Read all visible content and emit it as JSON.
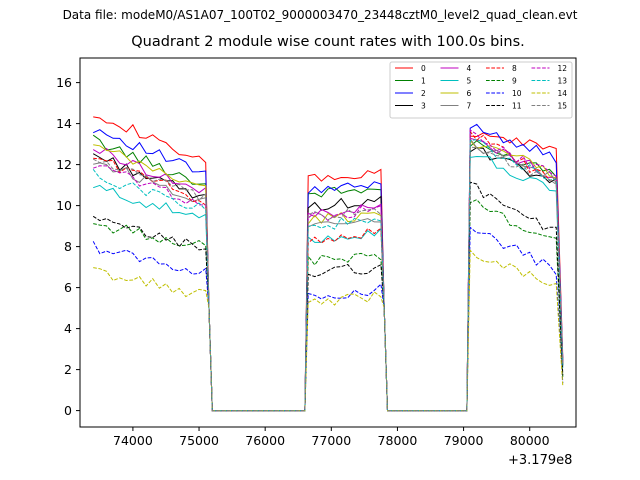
{
  "suptitle": "Data file: modeM0/AS1A07_100T02_9000003470_23448cztM0_level2_quad_clean.evt",
  "chart_data": {
    "type": "line",
    "title": "Quadrant 2 module wise count rates with 100.0s bins.",
    "xlabel": "",
    "ylabel": "",
    "x_offset_label": "+3.179e8",
    "xlim": [
      73200,
      80700
    ],
    "ylim": [
      -0.8,
      17.2
    ],
    "xticks": [
      74000,
      75000,
      76000,
      77000,
      78000,
      79000,
      80000
    ],
    "xtick_labels": [
      "74000",
      "75000",
      "76000",
      "77000",
      "78000",
      "79000",
      "80000"
    ],
    "yticks": [
      0,
      2,
      4,
      6,
      8,
      10,
      12,
      14,
      16
    ],
    "ytick_labels": [
      "0",
      "2",
      "4",
      "6",
      "8",
      "10",
      "12",
      "14",
      "16"
    ],
    "grid": false,
    "legend_position": "top-right",
    "legend_columns": 4,
    "segments": [
      [
        73400,
        75100
      ],
      [
        76650,
        77750
      ],
      [
        79100,
        80450
      ]
    ],
    "series": [
      {
        "name": "0",
        "color": "#ff0000",
        "dash": "solid",
        "level": [
          14.6,
          12.0,
          11.3,
          11.5,
          13.5,
          12.8
        ]
      },
      {
        "name": "1",
        "color": "#008000",
        "dash": "solid",
        "level": [
          13.2,
          11.0,
          10.6,
          10.8,
          13.0,
          11.6
        ]
      },
      {
        "name": "2",
        "color": "#0000ff",
        "dash": "solid",
        "level": [
          13.8,
          11.5,
          10.7,
          11.0,
          14.0,
          12.2
        ]
      },
      {
        "name": "3",
        "color": "#000000",
        "dash": "solid",
        "level": [
          12.5,
          10.3,
          10.0,
          10.2,
          12.8,
          11.0
        ]
      },
      {
        "name": "4",
        "color": "#bf00bf",
        "dash": "solid",
        "level": [
          12.8,
          10.6,
          9.6,
          9.9,
          13.3,
          11.3
        ]
      },
      {
        "name": "5",
        "color": "#00bfbf",
        "dash": "solid",
        "level": [
          10.9,
          9.3,
          8.4,
          8.7,
          12.6,
          10.5
        ]
      },
      {
        "name": "6",
        "color": "#bfbf00",
        "dash": "solid",
        "level": [
          12.9,
          10.8,
          9.3,
          9.6,
          13.2,
          11.5
        ]
      },
      {
        "name": "7",
        "color": "#808080",
        "dash": "solid",
        "level": [
          12.2,
          10.2,
          9.2,
          9.4,
          13.0,
          11.2
        ]
      },
      {
        "name": "8",
        "color": "#ff0000",
        "dash": "dashed",
        "level": [
          12.4,
          10.2,
          8.2,
          8.8,
          13.6,
          11.0
        ]
      },
      {
        "name": "9",
        "color": "#008000",
        "dash": "dashed",
        "level": [
          9.1,
          8.0,
          7.3,
          7.6,
          10.2,
          8.1
        ]
      },
      {
        "name": "10",
        "color": "#0000ff",
        "dash": "dashed",
        "level": [
          8.0,
          6.7,
          5.6,
          5.9,
          9.0,
          6.7
        ]
      },
      {
        "name": "11",
        "color": "#000000",
        "dash": "dashed",
        "level": [
          9.3,
          7.9,
          6.7,
          7.0,
          11.0,
          8.6
        ]
      },
      {
        "name": "12",
        "color": "#bf00bf",
        "dash": "dashed",
        "level": [
          12.0,
          10.0,
          9.4,
          9.8,
          13.5,
          11.3
        ]
      },
      {
        "name": "13",
        "color": "#00bfbf",
        "dash": "dashed",
        "level": [
          11.5,
          9.8,
          9.0,
          9.3,
          13.2,
          11.0
        ]
      },
      {
        "name": "14",
        "color": "#bfbf00",
        "dash": "dashed",
        "level": [
          6.8,
          5.6,
          5.3,
          5.6,
          7.8,
          6.0
        ]
      },
      {
        "name": "15",
        "color": "#808080",
        "dash": "dashed",
        "level": [
          12.3,
          10.3,
          9.4,
          9.8,
          13.0,
          11.0
        ]
      }
    ]
  }
}
